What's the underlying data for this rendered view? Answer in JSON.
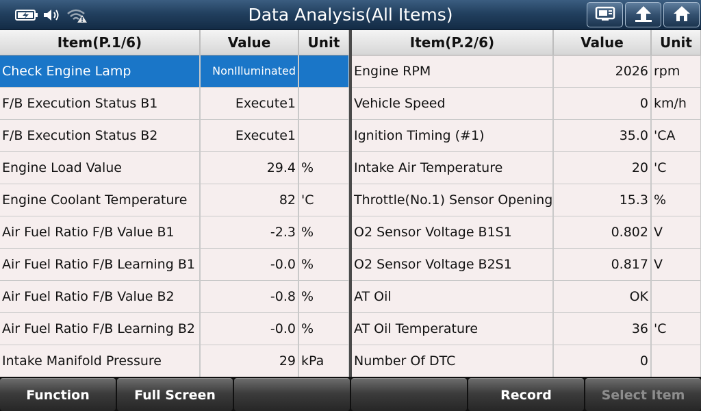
{
  "window": {
    "title": "Data Analysis(All Items)"
  },
  "status_icons": [
    "battery-charging-icon",
    "speaker-icon",
    "wifi-warning-icon"
  ],
  "nav_buttons": [
    "display-icon",
    "back-up-arrow-icon",
    "home-icon"
  ],
  "left_table": {
    "headers": {
      "item": "Item(P.1/6)",
      "value": "Value",
      "unit": "Unit"
    },
    "rows": [
      {
        "item": "Check Engine Lamp",
        "value": "NonIlluminated",
        "unit": ""
      },
      {
        "item": "F/B Execution Status B1",
        "value": "Execute1",
        "unit": ""
      },
      {
        "item": "F/B Execution Status B2",
        "value": "Execute1",
        "unit": ""
      },
      {
        "item": "Engine Load Value",
        "value": "29.4",
        "unit": "%"
      },
      {
        "item": "Engine Coolant Temperature",
        "value": "82",
        "unit": "'C"
      },
      {
        "item": "Air Fuel Ratio F/B Value B1",
        "value": "-2.3",
        "unit": "%"
      },
      {
        "item": "Air Fuel Ratio F/B Learning B1",
        "value": "-0.0",
        "unit": "%"
      },
      {
        "item": "Air Fuel Ratio F/B Value B2",
        "value": "-0.8",
        "unit": "%"
      },
      {
        "item": "Air Fuel Ratio F/B Learning B2",
        "value": "-0.0",
        "unit": "%"
      },
      {
        "item": "Intake Manifold Pressure",
        "value": "29",
        "unit": "kPa"
      }
    ]
  },
  "right_table": {
    "headers": {
      "item": "Item(P.2/6)",
      "value": "Value",
      "unit": "Unit"
    },
    "rows": [
      {
        "item": "Engine RPM",
        "value": "2026",
        "unit": "rpm"
      },
      {
        "item": "Vehicle Speed",
        "value": "0",
        "unit": "km/h"
      },
      {
        "item": "Ignition Timing (#1)",
        "value": "35.0",
        "unit": "'CA"
      },
      {
        "item": "Intake Air Temperature",
        "value": "20",
        "unit": "'C"
      },
      {
        "item": "Throttle(No.1) Sensor Opening",
        "value": "15.3",
        "unit": "%"
      },
      {
        "item": "O2 Sensor Voltage B1S1",
        "value": "0.802",
        "unit": "V"
      },
      {
        "item": "O2 Sensor Voltage B2S1",
        "value": "0.817",
        "unit": "V"
      },
      {
        "item": "AT Oil",
        "value": "OK",
        "unit": ""
      },
      {
        "item": "AT Oil Temperature",
        "value": "36",
        "unit": "'C"
      },
      {
        "item": "Number Of DTC",
        "value": "0",
        "unit": ""
      }
    ]
  },
  "toolbar": {
    "function_label": "Function",
    "fullscreen_label": "Full Screen",
    "empty1_label": "",
    "empty2_label": "",
    "record_label": "Record",
    "select_item_label": "Select Item"
  },
  "colors": {
    "selection": "#1a76c8",
    "row_background": "#f6eeee",
    "titlebar": "#22405f"
  }
}
